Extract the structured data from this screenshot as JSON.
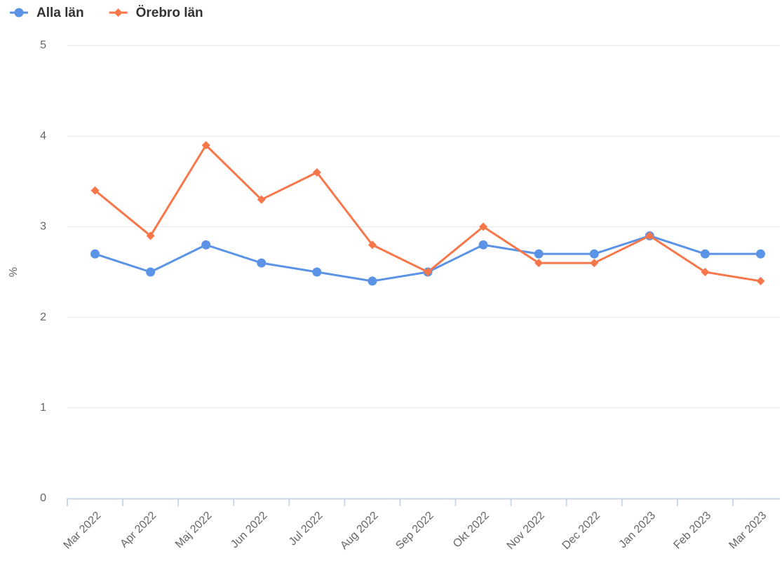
{
  "chart_data": {
    "type": "line",
    "y_label": "%",
    "categories": [
      "Mar 2022",
      "Apr 2022",
      "Maj 2022",
      "Jun 2022",
      "Jul 2022",
      "Aug 2022",
      "Sep 2022",
      "Okt 2022",
      "Nov 2022",
      "Dec 2022",
      "Jan 2023",
      "Feb 2023",
      "Mar 2023"
    ],
    "series": [
      {
        "name": "Alla län",
        "color": "#5b93e6",
        "marker": "circle",
        "values": [
          2.7,
          2.5,
          2.8,
          2.6,
          2.5,
          2.4,
          2.5,
          2.8,
          2.7,
          2.7,
          2.9,
          2.7,
          2.7
        ]
      },
      {
        "name": "Örebro län",
        "color": "#f7764a",
        "marker": "diamond",
        "values": [
          3.4,
          2.9,
          3.9,
          3.3,
          3.6,
          2.8,
          2.5,
          3.0,
          2.6,
          2.6,
          2.9,
          2.5,
          2.4
        ]
      }
    ],
    "ylim": [
      0,
      5
    ],
    "yticks": [
      0,
      1,
      2,
      3,
      4,
      5
    ],
    "grid": true,
    "legend": "top-left"
  }
}
